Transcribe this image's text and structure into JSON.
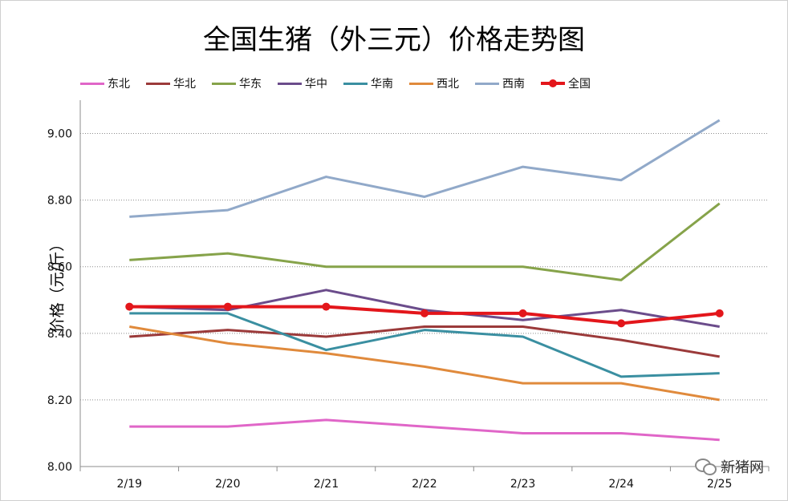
{
  "chart_data": {
    "type": "line",
    "title": "全国生猪（外三元）价格走势图",
    "ylabel": "价格（元/斤）",
    "xlabel": "",
    "categories": [
      "2/19",
      "2/20",
      "2/21",
      "2/22",
      "2/23",
      "2/24",
      "2/25"
    ],
    "ylim": [
      8.0,
      9.1
    ],
    "yticks": [
      "8.00",
      "8.20",
      "8.40",
      "8.60",
      "8.80",
      "9.00"
    ],
    "ytick_values": [
      8.0,
      8.2,
      8.4,
      8.6,
      8.8,
      9.0
    ],
    "grid": true,
    "legend_position": "top",
    "series": [
      {
        "name": "东北",
        "color": "#e066c8",
        "markers": false,
        "values": [
          8.12,
          8.12,
          8.14,
          8.12,
          8.1,
          8.1,
          8.08
        ]
      },
      {
        "name": "华北",
        "color": "#9b3a3a",
        "markers": false,
        "values": [
          8.39,
          8.41,
          8.39,
          8.42,
          8.42,
          8.38,
          8.33
        ]
      },
      {
        "name": "华东",
        "color": "#86a34a",
        "markers": false,
        "values": [
          8.62,
          8.64,
          8.6,
          8.6,
          8.6,
          8.56,
          8.79
        ]
      },
      {
        "name": "华中",
        "color": "#6b4c8b",
        "markers": false,
        "values": [
          8.48,
          8.47,
          8.53,
          8.47,
          8.44,
          8.47,
          8.42
        ]
      },
      {
        "name": "华南",
        "color": "#3a8fa1",
        "markers": false,
        "values": [
          8.46,
          8.46,
          8.35,
          8.41,
          8.39,
          8.27,
          8.28
        ]
      },
      {
        "name": "西北",
        "color": "#e08a3c",
        "markers": false,
        "values": [
          8.42,
          8.37,
          8.34,
          8.3,
          8.25,
          8.25,
          8.2
        ]
      },
      {
        "name": "西南",
        "color": "#91a9c9",
        "markers": false,
        "values": [
          8.75,
          8.77,
          8.87,
          8.81,
          8.9,
          8.86,
          9.04
        ]
      },
      {
        "name": "全国",
        "color": "#e3161b",
        "markers": true,
        "values": [
          8.48,
          8.48,
          8.48,
          8.46,
          8.46,
          8.43,
          8.46
        ]
      }
    ]
  },
  "watermark": {
    "icon": "wechat-icon",
    "text": "新猪网"
  }
}
